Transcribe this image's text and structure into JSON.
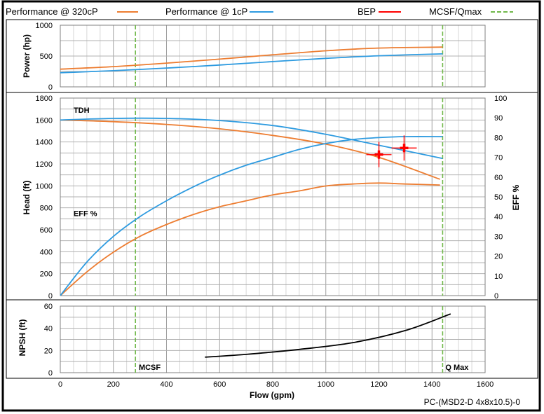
{
  "legend": {
    "items": [
      {
        "label": "Performance @ 320cP",
        "color": "#ED7D31",
        "style": "solid"
      },
      {
        "label": "Performance @ 1cP",
        "color": "#2E9BE0",
        "style": "solid"
      },
      {
        "label": "BEP",
        "color": "#FF0000",
        "style": "solid"
      },
      {
        "label": "MCSF/Qmax",
        "color": "#70B84A",
        "style": "dashed"
      }
    ]
  },
  "footer": {
    "model": "PC-(MSD2-D 4x8x10.5)-0"
  },
  "chart_data": [
    {
      "type": "line",
      "ylabel": "Power (hp)",
      "ylim": [
        0,
        1000
      ],
      "yticks": [
        "0",
        "500",
        "1000"
      ],
      "xlim": [
        0,
        1600
      ],
      "series": [
        {
          "name": "Performance @ 320cP",
          "x": [
            0,
            200,
            400,
            600,
            800,
            1000,
            1200,
            1440
          ],
          "y": [
            288,
            328,
            385,
            450,
            520,
            585,
            630,
            645
          ]
        },
        {
          "name": "Performance @ 1cP",
          "x": [
            0,
            200,
            400,
            600,
            800,
            1000,
            1200,
            1440
          ],
          "y": [
            230,
            262,
            305,
            355,
            410,
            462,
            505,
            535
          ]
        }
      ]
    },
    {
      "type": "line",
      "ylabel": "Head (ft)",
      "ylabel_right": "EFF %",
      "ylim": [
        0,
        1800
      ],
      "ylim_right": [
        0,
        100
      ],
      "yticks": [
        "0",
        "200",
        "400",
        "600",
        "800",
        "1000",
        "1200",
        "1400",
        "1600",
        "1800"
      ],
      "yticks_right": [
        "0",
        "10",
        "20",
        "30",
        "40",
        "50",
        "60",
        "70",
        "80",
        "90",
        "100"
      ],
      "xlim": [
        0,
        1600
      ],
      "annotations": [
        {
          "text": "TDH",
          "x": 50,
          "y": 1665
        },
        {
          "text": "EFF %",
          "x": 50,
          "y": 725
        }
      ],
      "series": [
        {
          "name": "TDH @ 320cP",
          "axis": "left",
          "x": [
            0,
            200,
            400,
            600,
            800,
            1000,
            1200,
            1430
          ],
          "y": [
            1600,
            1585,
            1560,
            1520,
            1460,
            1380,
            1260,
            1060
          ]
        },
        {
          "name": "TDH @ 1cP",
          "axis": "left",
          "x": [
            0,
            200,
            400,
            600,
            800,
            1000,
            1200,
            1440
          ],
          "y": [
            1600,
            1615,
            1615,
            1595,
            1550,
            1470,
            1370,
            1250
          ]
        },
        {
          "name": "EFF @ 320cP",
          "axis": "right",
          "x": [
            0,
            100,
            200,
            300,
            400,
            500,
            600,
            700,
            800,
            900,
            1000,
            1100,
            1200,
            1300,
            1430
          ],
          "y": [
            0,
            12,
            22,
            30,
            36,
            41,
            45,
            48,
            51,
            53,
            55.5,
            56.5,
            57,
            56.5,
            56
          ]
        },
        {
          "name": "EFF @ 1cP",
          "axis": "right",
          "x": [
            0,
            100,
            200,
            300,
            400,
            500,
            600,
            700,
            800,
            900,
            1000,
            1100,
            1200,
            1300,
            1440
          ],
          "y": [
            0,
            17,
            30,
            40,
            48,
            55,
            61,
            66,
            70,
            74,
            77,
            79,
            80,
            80.5,
            80.5
          ]
        }
      ],
      "bep": [
        {
          "x": 1200,
          "y": 1285
        },
        {
          "x": 1295,
          "y": 1345
        }
      ]
    },
    {
      "type": "line",
      "ylabel": "NPSH (ft)",
      "xlabel": "Flow (gpm)",
      "ylim": [
        0,
        60
      ],
      "yticks": [
        "0",
        "20",
        "40",
        "60"
      ],
      "xlim": [
        0,
        1600
      ],
      "xticks": [
        "0",
        "200",
        "400",
        "600",
        "800",
        "1000",
        "1200",
        "1400",
        "1600"
      ],
      "annotations": [
        {
          "text": "MCSF",
          "x": 285
        },
        {
          "text": "Q Max",
          "x": 1440
        }
      ],
      "series": [
        {
          "name": "NPSH",
          "x": [
            545,
            700,
            900,
            1100,
            1300,
            1470
          ],
          "y": [
            14,
            16.5,
            21,
            27,
            38,
            53
          ]
        }
      ]
    }
  ],
  "markers": {
    "mcsf_x": 283,
    "qmax_x": 1440
  }
}
